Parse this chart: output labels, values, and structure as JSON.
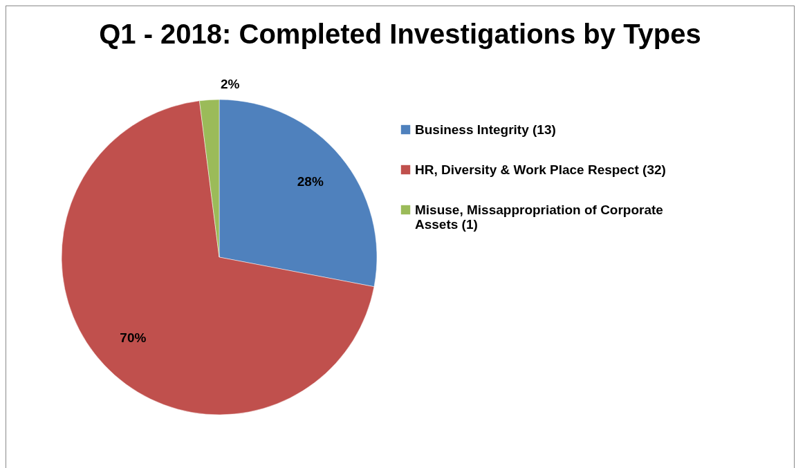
{
  "chart_data": {
    "type": "pie",
    "title": "Q1 - 2018: Completed Investigations by Types",
    "categories": [
      "Business Integrity (13)",
      "HR, Diversity & Work Place Respect (32)",
      "Misuse, Missappropriation of Corporate Assets (1)"
    ],
    "values": [
      28,
      70,
      2
    ],
    "colors": [
      "#4f81bd",
      "#c0504d",
      "#9bbb59"
    ],
    "value_labels": [
      "28%",
      "70%",
      "2%"
    ],
    "legend": "right"
  }
}
